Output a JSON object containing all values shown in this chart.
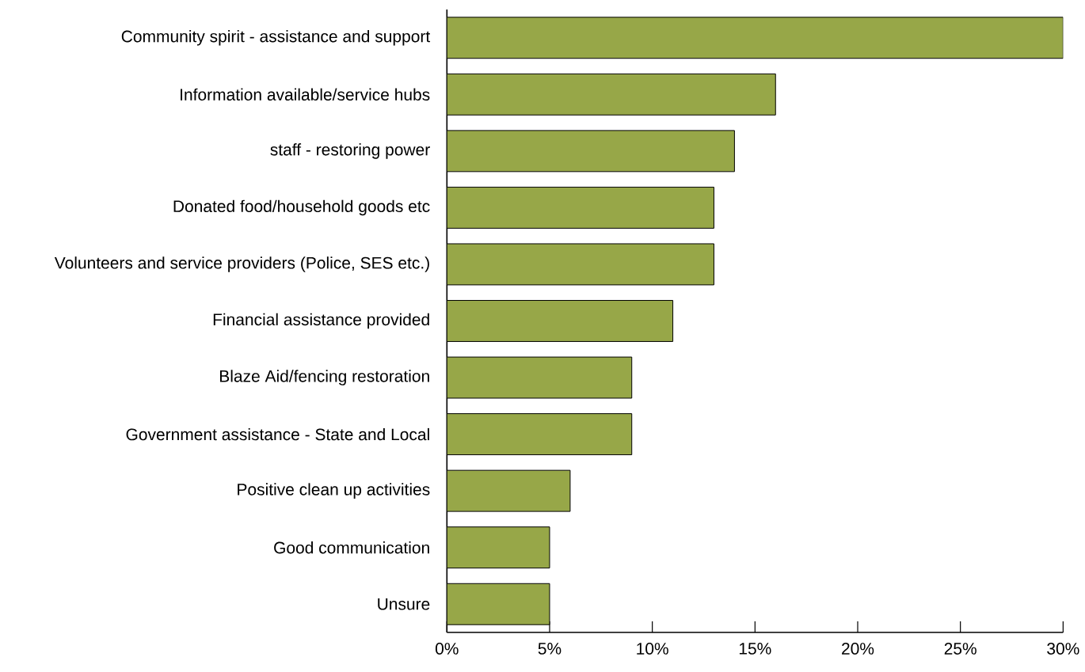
{
  "chart_data": {
    "type": "bar",
    "orientation": "horizontal",
    "categories": [
      "Community spirit - assistance and support",
      "Information available/service hubs",
      "staff - restoring power",
      "Donated food/household goods etc",
      "Volunteers and service providers (Police, SES etc.)",
      "Financial assistance provided",
      "Blaze Aid/fencing restoration",
      "Government assistance - State and Local",
      "Positive clean up activities",
      "Good communication",
      "Unsure"
    ],
    "values": [
      30,
      16,
      14,
      13,
      13,
      11,
      9,
      9,
      6,
      5,
      5
    ],
    "color": "#97a748",
    "xlim": [
      0,
      30
    ],
    "xticks": [
      {
        "value": 0,
        "label": "0%"
      },
      {
        "value": 5,
        "label": "5%"
      },
      {
        "value": 10,
        "label": "10%"
      },
      {
        "value": 15,
        "label": "15%"
      },
      {
        "value": 20,
        "label": "20%"
      },
      {
        "value": 25,
        "label": "25%"
      },
      {
        "value": 30,
        "label": "30%"
      }
    ],
    "grid": false
  }
}
